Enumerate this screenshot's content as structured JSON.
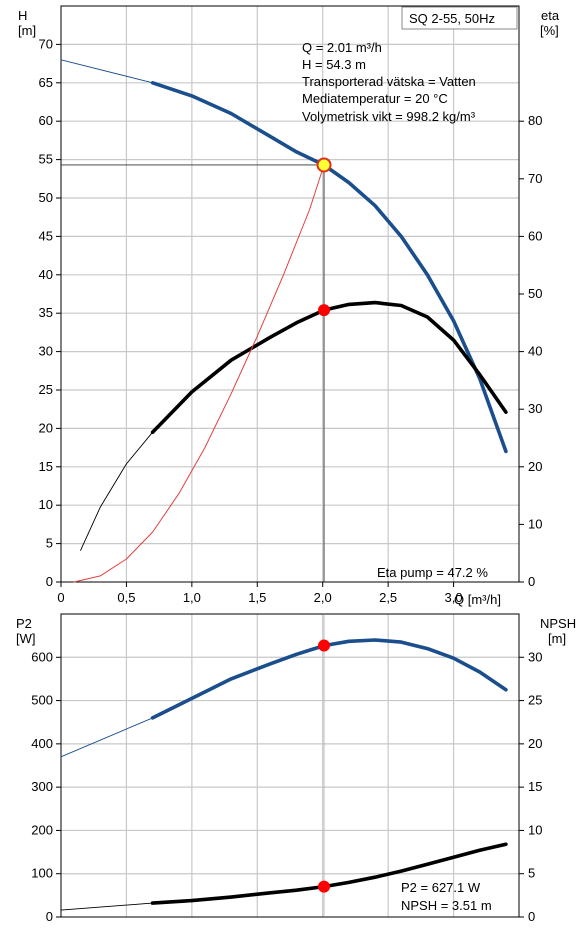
{
  "colors": {
    "pump_curve": "#1a4e8c",
    "efficiency": "#000000",
    "system_curve": "#e04040",
    "operating_point": "#ff0000",
    "duty_point_fill": "#ffff33",
    "grid": "#c8c8c8"
  },
  "chart_data": [
    {
      "type": "line",
      "label_box": "SQ 2-55, 50Hz",
      "xlabel": "Q [m³/h]",
      "y_left": {
        "name": "H",
        "unit": "[m]",
        "range": [
          0,
          75
        ],
        "ticks": [
          0,
          5,
          10,
          15,
          20,
          25,
          30,
          35,
          40,
          45,
          50,
          55,
          60,
          65,
          70
        ]
      },
      "y_right": {
        "name": "eta",
        "unit": "[%]",
        "range": [
          0,
          100
        ],
        "ticks": [
          0,
          10,
          20,
          30,
          40,
          50,
          60,
          70,
          80
        ]
      },
      "x_range": [
        0,
        3.5
      ],
      "x_ticks": [
        "0",
        "0,5",
        "1,0",
        "1,5",
        "2,0",
        "2,5",
        "3,0"
      ],
      "info_lines": [
        "Q = 2.01 m³/h",
        "H = 54.3 m",
        "Transporterad vätska = Vatten",
        "Mediatemperatur = 20 °C",
        "Volymetrisk vikt = 998.2 kg/m³"
      ],
      "footer": "Eta pump = 47.2 %",
      "duty_point": {
        "x": 2.01,
        "h": 54.3
      },
      "series": [
        {
          "axis": "left",
          "style": "thin",
          "x": [
            0,
            0.7
          ],
          "y": [
            68,
            65
          ]
        },
        {
          "axis": "left",
          "style": "thick",
          "x": [
            0.7,
            1.0,
            1.3,
            1.6,
            1.8,
            2.01,
            2.2,
            2.4,
            2.6,
            2.8,
            3.0,
            3.2,
            3.4
          ],
          "y": [
            65,
            63.3,
            61,
            58,
            56,
            54.3,
            52,
            49,
            45,
            40,
            34,
            26.5,
            17
          ]
        },
        {
          "axis": "right",
          "style": "thin",
          "x": [
            0.15,
            0.3,
            0.5,
            0.7
          ],
          "y": [
            5.5,
            13,
            20.5,
            26
          ]
        },
        {
          "axis": "right",
          "style": "thick",
          "x": [
            0.7,
            1.0,
            1.3,
            1.6,
            1.8,
            2.01,
            2.2,
            2.4,
            2.6,
            2.8,
            3.0,
            3.2,
            3.4
          ],
          "y": [
            26,
            33,
            38.5,
            42.5,
            45,
            47.2,
            48.2,
            48.5,
            48,
            46,
            42,
            36,
            29.5
          ]
        },
        {
          "axis": "left",
          "style": "system",
          "x": [
            0.1,
            0.3,
            0.5,
            0.7,
            0.9,
            1.1,
            1.3,
            1.5,
            1.7,
            1.9,
            2.01
          ],
          "y": [
            0,
            0.8,
            3,
            6.5,
            11.5,
            17.5,
            24.5,
            32,
            40,
            48.5,
            54.3
          ]
        }
      ],
      "markers": [
        {
          "x": 2.01,
          "y": 47.2,
          "axis": "right"
        }
      ]
    },
    {
      "type": "line",
      "y_left": {
        "name": "P2",
        "unit": "[W]",
        "range": [
          0,
          700
        ],
        "ticks": [
          0,
          100,
          200,
          300,
          400,
          500,
          600
        ]
      },
      "y_right": {
        "name": "NPSH",
        "unit": "[m]",
        "range": [
          0,
          35
        ],
        "ticks": [
          0,
          5,
          10,
          15,
          20,
          25,
          30
        ]
      },
      "x_range": [
        0,
        3.5
      ],
      "info_lines": [
        "P2 = 627.1 W",
        "NPSH = 3.51 m"
      ],
      "series": [
        {
          "axis": "left",
          "style": "thin",
          "x": [
            0,
            0.7
          ],
          "y": [
            370,
            460
          ]
        },
        {
          "axis": "left",
          "style": "thick",
          "x": [
            0.7,
            1.0,
            1.3,
            1.6,
            1.8,
            2.01,
            2.2,
            2.4,
            2.6,
            2.8,
            3.0,
            3.2,
            3.4
          ],
          "y": [
            460,
            505,
            550,
            585,
            607,
            627,
            637,
            640,
            635,
            620,
            598,
            566,
            525
          ]
        },
        {
          "axis": "right",
          "style": "thin",
          "x": [
            0,
            0.7
          ],
          "y": [
            0.8,
            1.6
          ]
        },
        {
          "axis": "right",
          "style": "thick",
          "x": [
            0.7,
            1.0,
            1.3,
            1.6,
            1.8,
            2.01,
            2.2,
            2.4,
            2.6,
            2.8,
            3.0,
            3.2,
            3.4
          ],
          "y": [
            1.6,
            1.9,
            2.3,
            2.8,
            3.1,
            3.51,
            4.0,
            4.6,
            5.3,
            6.1,
            6.9,
            7.7,
            8.4
          ]
        }
      ],
      "markers": [
        {
          "x": 2.01,
          "y": 627.1,
          "axis": "left"
        },
        {
          "x": 2.01,
          "y": 3.51,
          "axis": "right"
        }
      ]
    }
  ]
}
